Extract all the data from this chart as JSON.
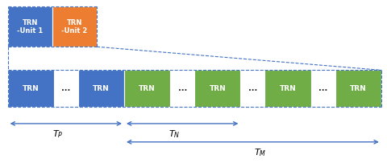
{
  "blue_color": "#4472C4",
  "green_color": "#70AD47",
  "orange_color": "#ED7D31",
  "arrow_color": "#4472C4",
  "bg_color": "#FFFFFF",
  "dashed_color": "#4472C4",
  "fig_w": 4.8,
  "fig_h": 2.08,
  "dpi": 100,
  "legend_boxes": [
    {
      "label": "TRN\n-Unit 1",
      "color": "#4472C4"
    },
    {
      "label": "TRN\n-Unit 2",
      "color": "#ED7D31"
    }
  ],
  "trn_row": [
    {
      "label": "TRN",
      "color": "#4472C4"
    },
    {
      "label": "...",
      "color": null
    },
    {
      "label": "TRN",
      "color": "#4472C4"
    },
    {
      "label": "TRN",
      "color": "#70AD47"
    },
    {
      "label": "...",
      "color": null
    },
    {
      "label": "TRN",
      "color": "#70AD47"
    },
    {
      "label": "...",
      "color": null
    },
    {
      "label": "TRN",
      "color": "#70AD47"
    },
    {
      "label": "...",
      "color": null
    },
    {
      "label": "TRN",
      "color": "#70AD47"
    }
  ],
  "tp_label": "$T_P$",
  "tn_label": "$T_N$",
  "tm_label": "$T_M$"
}
